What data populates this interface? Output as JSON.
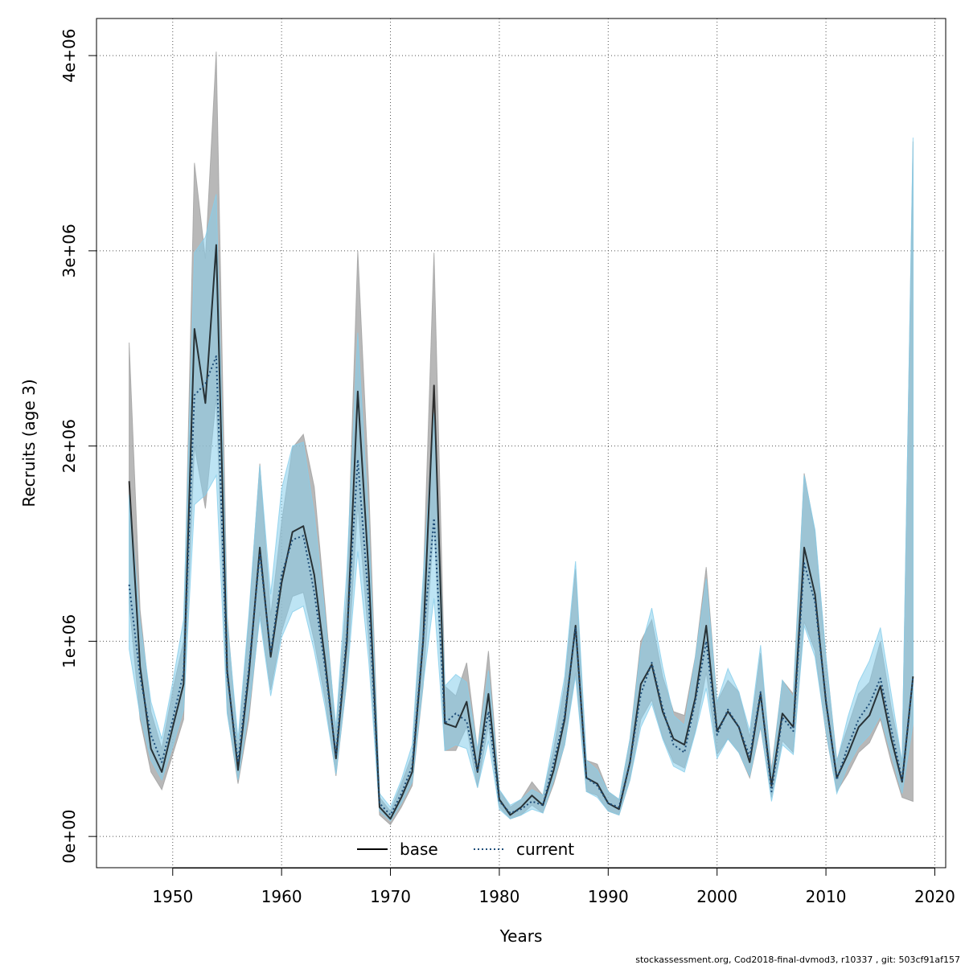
{
  "chart_data": {
    "type": "line",
    "xlabel": "Years",
    "ylabel": "Recruits (age 3)",
    "xlim": [
      1943,
      2021
    ],
    "ylim": [
      -160000,
      4190000
    ],
    "x_ticks": [
      1950,
      1960,
      1970,
      1980,
      1990,
      2000,
      2010,
      2020
    ],
    "x_tick_labels": [
      "1950",
      "1960",
      "1970",
      "1980",
      "1990",
      "2000",
      "2010",
      "2020"
    ],
    "y_ticks": [
      0,
      1000000,
      2000000,
      3000000,
      4000000
    ],
    "y_tick_labels": [
      "0e+00",
      "1e+06",
      "2e+06",
      "3e+06",
      "4e+06"
    ],
    "grid": true,
    "legend_placement": "bottom-center",
    "x": [
      1946,
      1947,
      1948,
      1949,
      1950,
      1951,
      1952,
      1953,
      1954,
      1955,
      1956,
      1957,
      1958,
      1959,
      1960,
      1961,
      1962,
      1963,
      1964,
      1965,
      1966,
      1967,
      1968,
      1969,
      1970,
      1971,
      1972,
      1973,
      1974,
      1975,
      1976,
      1977,
      1978,
      1979,
      1980,
      1981,
      1982,
      1983,
      1984,
      1985,
      1986,
      1987,
      1988,
      1989,
      1990,
      1991,
      1992,
      1993,
      1994,
      1995,
      1996,
      1997,
      1998,
      1999,
      2000,
      2001,
      2002,
      2003,
      2004,
      2005,
      2006,
      2007,
      2008,
      2009,
      2010,
      2011,
      2012,
      2013,
      2014,
      2015,
      2016,
      2017,
      2018
    ],
    "series": [
      {
        "name": "base",
        "color": "#000000",
        "style": "solid",
        "band_color": "#a0a0a0",
        "values": [
          1820000,
          870000,
          450000,
          330000,
          560000,
          780000,
          2600000,
          2220000,
          3030000,
          850000,
          340000,
          830000,
          1480000,
          920000,
          1300000,
          1560000,
          1590000,
          1340000,
          900000,
          400000,
          1000000,
          2280000,
          1350000,
          150000,
          90000,
          200000,
          330000,
          1000000,
          2310000,
          580000,
          560000,
          690000,
          330000,
          730000,
          190000,
          110000,
          150000,
          210000,
          160000,
          340000,
          600000,
          1080000,
          300000,
          270000,
          170000,
          140000,
          380000,
          780000,
          880000,
          640000,
          500000,
          470000,
          710000,
          1080000,
          540000,
          640000,
          560000,
          380000,
          730000,
          260000,
          630000,
          560000,
          1480000,
          1240000,
          690000,
          300000,
          420000,
          560000,
          620000,
          770000,
          500000,
          280000,
          820000
        ],
        "lower": [
          1200000,
          600000,
          330000,
          240000,
          420000,
          600000,
          2000000,
          1680000,
          2250000,
          640000,
          270000,
          600000,
          1150000,
          750000,
          1050000,
          1230000,
          1250000,
          1000000,
          700000,
          310000,
          800000,
          1700000,
          1000000,
          110000,
          60000,
          150000,
          260000,
          770000,
          1610000,
          440000,
          440000,
          560000,
          250000,
          570000,
          150000,
          90000,
          110000,
          160000,
          120000,
          270000,
          470000,
          840000,
          230000,
          210000,
          130000,
          110000,
          290000,
          600000,
          700000,
          510000,
          380000,
          350000,
          540000,
          840000,
          420000,
          500000,
          430000,
          300000,
          560000,
          200000,
          490000,
          430000,
          1100000,
          950000,
          530000,
          230000,
          320000,
          430000,
          480000,
          600000,
          380000,
          200000,
          180000
        ],
        "upper": [
          2530000,
          1160000,
          640000,
          450000,
          750000,
          1000000,
          3450000,
          2960000,
          4020000,
          1130000,
          450000,
          1120000,
          1910000,
          1130000,
          1610000,
          1990000,
          2060000,
          1790000,
          1180000,
          530000,
          1260000,
          3000000,
          1800000,
          200000,
          130000,
          270000,
          420000,
          1290000,
          2990000,
          770000,
          720000,
          890000,
          440000,
          950000,
          240000,
          150000,
          190000,
          280000,
          210000,
          450000,
          780000,
          1370000,
          390000,
          370000,
          230000,
          190000,
          500000,
          1000000,
          1110000,
          820000,
          640000,
          620000,
          920000,
          1380000,
          690000,
          800000,
          740000,
          510000,
          940000,
          340000,
          800000,
          730000,
          1860000,
          1560000,
          920000,
          390000,
          560000,
          730000,
          790000,
          1000000,
          660000,
          380000,
          3560000
        ]
      },
      {
        "name": "current",
        "color": "#1f4e79",
        "style": "dotted",
        "band_color": "#87ceeb",
        "values": [
          1290000,
          820000,
          520000,
          380000,
          600000,
          840000,
          2260000,
          2320000,
          2460000,
          830000,
          380000,
          860000,
          1450000,
          940000,
          1340000,
          1520000,
          1540000,
          1250000,
          860000,
          420000,
          1040000,
          1930000,
          1200000,
          170000,
          110000,
          220000,
          360000,
          1010000,
          1630000,
          580000,
          630000,
          590000,
          330000,
          640000,
          180000,
          120000,
          140000,
          180000,
          160000,
          380000,
          620000,
          1070000,
          300000,
          260000,
          170000,
          150000,
          380000,
          730000,
          890000,
          660000,
          470000,
          430000,
          690000,
          1000000,
          520000,
          650000,
          560000,
          410000,
          740000,
          230000,
          610000,
          540000,
          1400000,
          1200000,
          700000,
          290000,
          460000,
          600000,
          680000,
          810000,
          550000,
          290000,
          820000
        ],
        "lower": [
          960000,
          620000,
          390000,
          290000,
          460000,
          650000,
          1700000,
          1750000,
          1850000,
          630000,
          290000,
          650000,
          1120000,
          720000,
          1020000,
          1150000,
          1180000,
          950000,
          660000,
          320000,
          800000,
          1460000,
          900000,
          130000,
          80000,
          170000,
          280000,
          780000,
          1220000,
          440000,
          470000,
          450000,
          250000,
          490000,
          140000,
          90000,
          110000,
          140000,
          120000,
          290000,
          470000,
          820000,
          230000,
          200000,
          130000,
          110000,
          290000,
          560000,
          680000,
          500000,
          360000,
          330000,
          530000,
          760000,
          400000,
          500000,
          430000,
          310000,
          570000,
          180000,
          470000,
          420000,
          1080000,
          920000,
          540000,
          220000,
          360000,
          460000,
          520000,
          620000,
          420000,
          220000,
          580000
        ],
        "upper": [
          1750000,
          1100000,
          690000,
          500000,
          790000,
          1110000,
          2990000,
          3070000,
          3290000,
          1100000,
          500000,
          1140000,
          1900000,
          1240000,
          1780000,
          2000000,
          2020000,
          1650000,
          1130000,
          560000,
          1370000,
          2580000,
          1600000,
          220000,
          150000,
          290000,
          470000,
          1330000,
          2170000,
          770000,
          830000,
          790000,
          440000,
          850000,
          240000,
          160000,
          190000,
          240000,
          210000,
          500000,
          820000,
          1410000,
          390000,
          340000,
          230000,
          190000,
          500000,
          960000,
          1170000,
          870000,
          620000,
          570000,
          910000,
          1320000,
          690000,
          860000,
          740000,
          540000,
          980000,
          310000,
          800000,
          710000,
          1850000,
          1570000,
          920000,
          380000,
          610000,
          790000,
          900000,
          1070000,
          730000,
          380000,
          3580000
        ]
      }
    ]
  },
  "legend": {
    "base_label": "base",
    "current_label": "current"
  },
  "footer": {
    "text": "stockassessment.org, Cod2018-final-dvmod3, r10337 , git: 503cf91af157"
  }
}
